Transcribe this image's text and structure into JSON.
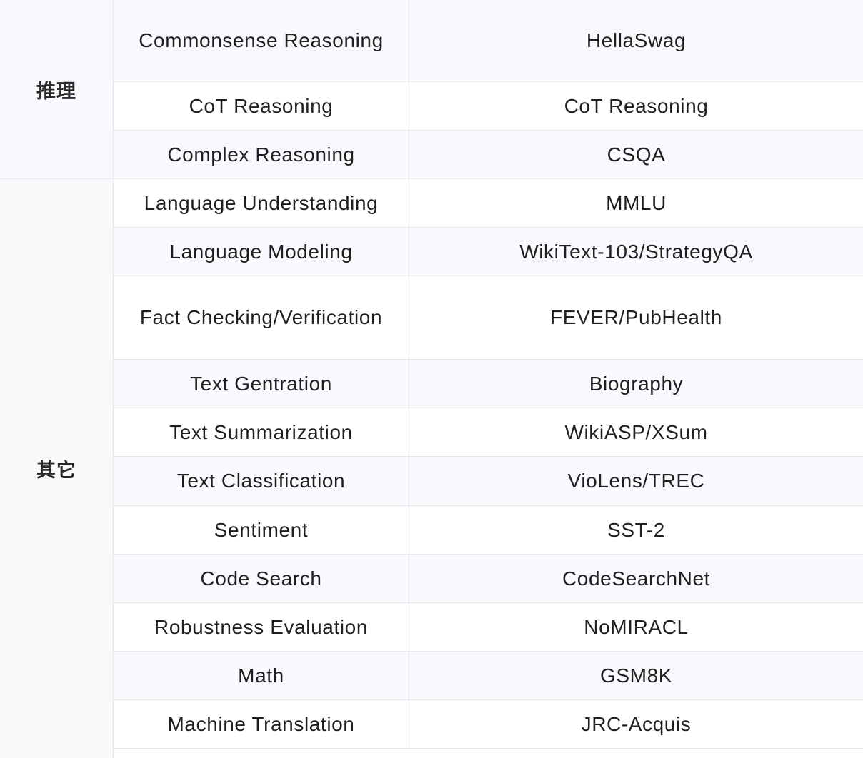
{
  "groups": [
    {
      "label": "推理"
    },
    {
      "label": "其它"
    }
  ],
  "rows": [
    {
      "task": "Commonsense Reasoning",
      "dataset": "HellaSwag"
    },
    {
      "task": "CoT Reasoning",
      "dataset": "CoT Reasoning"
    },
    {
      "task": "Complex Reasoning",
      "dataset": "CSQA"
    },
    {
      "task": "Language Understanding",
      "dataset": "MMLU"
    },
    {
      "task": "Language Modeling",
      "dataset": "WikiText-103/StrategyQA"
    },
    {
      "task": "Fact Checking/Verification",
      "dataset": "FEVER/PubHealth"
    },
    {
      "task": "Text Gentration",
      "dataset": "Biography"
    },
    {
      "task": "Text Summarization",
      "dataset": "WikiASP/XSum"
    },
    {
      "task": "Text Classification",
      "dataset": "VioLens/TREC"
    },
    {
      "task": "Sentiment",
      "dataset": "SST-2"
    },
    {
      "task": "Code Search",
      "dataset": "CodeSearchNet"
    },
    {
      "task": "Robustness Evaluation",
      "dataset": "NoMIRACL"
    },
    {
      "task": "Math",
      "dataset": "GSM8K"
    },
    {
      "task": "Machine Translation",
      "dataset": "JRC-Acquis"
    }
  ]
}
